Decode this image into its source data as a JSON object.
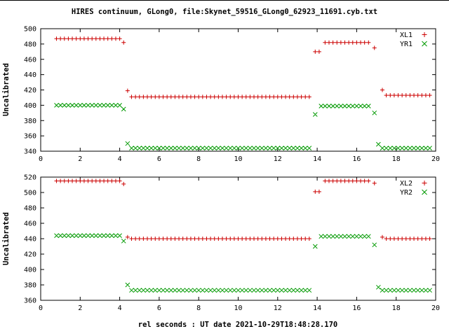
{
  "title": "HIRES continuum, GLong0, file:Skynet_59516_GLong0_62923_11691.cyb.txt",
  "xlabel": "rel seconds : UT date 2021-10-29T18:48:28.170",
  "colors": {
    "red": "#cc0000",
    "green": "#009900",
    "text": "#000000",
    "background": "#ffffff"
  },
  "chart_data": [
    {
      "type": "scatter",
      "title": "",
      "ylabel": "Uncalibrated",
      "xlim": [
        0,
        20
      ],
      "ylim": [
        340,
        500
      ],
      "xticks": [
        0,
        2,
        4,
        6,
        8,
        10,
        12,
        14,
        16,
        18,
        20
      ],
      "yticks": [
        340,
        360,
        380,
        400,
        420,
        440,
        460,
        480,
        500
      ],
      "x_step": 0.2,
      "grid": false,
      "legend_position": "top-right",
      "series": [
        {
          "name": "XL1",
          "marker": "plus",
          "color": "#cc0000",
          "segments": [
            [
              0.8,
              4.0,
              487
            ],
            [
              4.2,
              4.2,
              482
            ],
            [
              4.4,
              4.4,
              419
            ],
            [
              4.6,
              13.6,
              411
            ],
            [
              13.9,
              14.1,
              470
            ],
            [
              14.4,
              16.6,
              482
            ],
            [
              16.9,
              16.9,
              475
            ],
            [
              17.3,
              17.3,
              420
            ],
            [
              17.5,
              19.7,
              413
            ]
          ]
        },
        {
          "name": "YR1",
          "marker": "cross",
          "color": "#009900",
          "segments": [
            [
              0.8,
              4.0,
              400
            ],
            [
              4.2,
              4.2,
              395
            ],
            [
              4.4,
              4.4,
              350
            ],
            [
              4.6,
              13.6,
              344
            ],
            [
              13.9,
              13.9,
              388
            ],
            [
              14.2,
              16.6,
              399
            ],
            [
              16.9,
              16.9,
              390
            ],
            [
              17.1,
              17.1,
              349
            ],
            [
              17.3,
              19.7,
              344
            ]
          ]
        }
      ]
    },
    {
      "type": "scatter",
      "title": "",
      "ylabel": "Uncalibrated",
      "xlim": [
        0,
        20
      ],
      "ylim": [
        360,
        520
      ],
      "xticks": [
        0,
        2,
        4,
        6,
        8,
        10,
        12,
        14,
        16,
        18,
        20
      ],
      "yticks": [
        360,
        380,
        400,
        420,
        440,
        460,
        480,
        500,
        520
      ],
      "x_step": 0.2,
      "grid": false,
      "legend_position": "top-right",
      "series": [
        {
          "name": "XL2",
          "marker": "plus",
          "color": "#cc0000",
          "segments": [
            [
              0.8,
              4.0,
              515
            ],
            [
              4.2,
              4.2,
              511
            ],
            [
              4.4,
              4.4,
              442
            ],
            [
              4.6,
              13.6,
              440
            ],
            [
              13.9,
              14.1,
              501
            ],
            [
              14.4,
              16.6,
              515
            ],
            [
              16.9,
              16.9,
              512
            ],
            [
              17.3,
              17.3,
              442
            ],
            [
              17.5,
              19.7,
              440
            ]
          ]
        },
        {
          "name": "YR2",
          "marker": "cross",
          "color": "#009900",
          "segments": [
            [
              0.8,
              4.0,
              444
            ],
            [
              4.2,
              4.2,
              437
            ],
            [
              4.4,
              4.4,
              380
            ],
            [
              4.6,
              13.6,
              373
            ],
            [
              13.9,
              13.9,
              430
            ],
            [
              14.2,
              16.6,
              443
            ],
            [
              16.9,
              16.9,
              432
            ],
            [
              17.1,
              17.1,
              377
            ],
            [
              17.3,
              19.7,
              373
            ]
          ]
        }
      ]
    }
  ]
}
